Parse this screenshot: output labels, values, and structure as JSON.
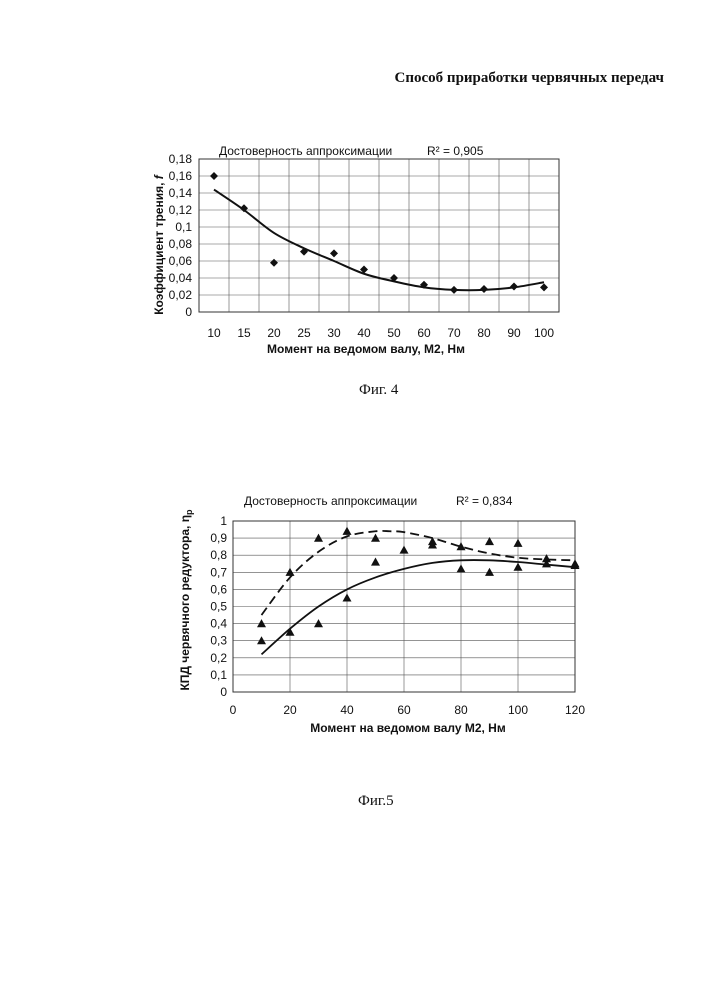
{
  "page": {
    "title": "Способ приработки червячных передач"
  },
  "chart_data": [
    {
      "type": "scatter",
      "figure_caption": "Фиг. 4",
      "annotation_label": "Достоверность аппроксимации",
      "annotation_r2": "R² = 0,905",
      "xlabel": "Момент на ведомом валу, М2, Нм",
      "ylabel": "Коэффициент трения, ",
      "ylabel_symbol": "f",
      "categories": [
        "10",
        "15",
        "20",
        "25",
        "30",
        "40",
        "50",
        "60",
        "70",
        "80",
        "90",
        "100"
      ],
      "y_ticks": [
        "0",
        "0,02",
        "0,04",
        "0,06",
        "0,08",
        "0,1",
        "0,12",
        "0,14",
        "0,16",
        "0,18"
      ],
      "ylim": [
        0,
        0.18
      ],
      "series": [
        {
          "name": "points",
          "marker": "diamond",
          "values": [
            0.16,
            0.122,
            0.058,
            0.071,
            0.069,
            0.05,
            0.04,
            0.032,
            0.026,
            0.027,
            0.03,
            0.029
          ]
        },
        {
          "name": "trend",
          "style": "solid",
          "values": [
            0.144,
            0.12,
            0.093,
            0.075,
            0.06,
            0.045,
            0.036,
            0.029,
            0.026,
            0.026,
            0.029,
            0.035
          ]
        }
      ]
    },
    {
      "type": "scatter",
      "figure_caption": "Фиг.5",
      "annotation_label": "Достоверность  аппроксимации",
      "annotation_r2": "R² = 0,834",
      "xlabel": "Момент на ведомом валу М2, Нм",
      "ylabel": "КПД червячного редуктора, ",
      "ylabel_symbol": "η",
      "ylabel_subscript": "р",
      "x_ticks": [
        "0",
        "20",
        "40",
        "60",
        "80",
        "100",
        "120"
      ],
      "y_ticks": [
        "0",
        "0,1",
        "0,2",
        "0,3",
        "0,4",
        "0,5",
        "0,6",
        "0,7",
        "0,8",
        "0,9",
        "1"
      ],
      "xlim": [
        0,
        120
      ],
      "ylim": [
        0,
        1
      ],
      "series": [
        {
          "name": "points",
          "marker": "triangle",
          "x": [
            10,
            10,
            20,
            20,
            30,
            30,
            40,
            40,
            50,
            50,
            60,
            70,
            70,
            80,
            80,
            90,
            90,
            100,
            100,
            110,
            110,
            120,
            120
          ],
          "y": [
            0.4,
            0.3,
            0.7,
            0.35,
            0.9,
            0.4,
            0.94,
            0.55,
            0.9,
            0.76,
            0.83,
            0.88,
            0.86,
            0.85,
            0.72,
            0.88,
            0.7,
            0.87,
            0.73,
            0.78,
            0.75,
            0.75,
            0.74
          ]
        },
        {
          "name": "trend-dashed",
          "style": "dashed",
          "x": [
            10,
            20,
            30,
            40,
            50,
            55,
            60,
            70,
            80,
            90,
            100,
            110,
            120
          ],
          "y": [
            0.45,
            0.67,
            0.82,
            0.91,
            0.94,
            0.94,
            0.935,
            0.9,
            0.85,
            0.81,
            0.785,
            0.775,
            0.77
          ]
        },
        {
          "name": "trend-solid",
          "style": "solid",
          "x": [
            10,
            20,
            30,
            40,
            50,
            60,
            70,
            80,
            90,
            100,
            110,
            120
          ],
          "y": [
            0.22,
            0.37,
            0.5,
            0.6,
            0.67,
            0.72,
            0.755,
            0.77,
            0.77,
            0.76,
            0.745,
            0.73
          ]
        }
      ]
    }
  ]
}
